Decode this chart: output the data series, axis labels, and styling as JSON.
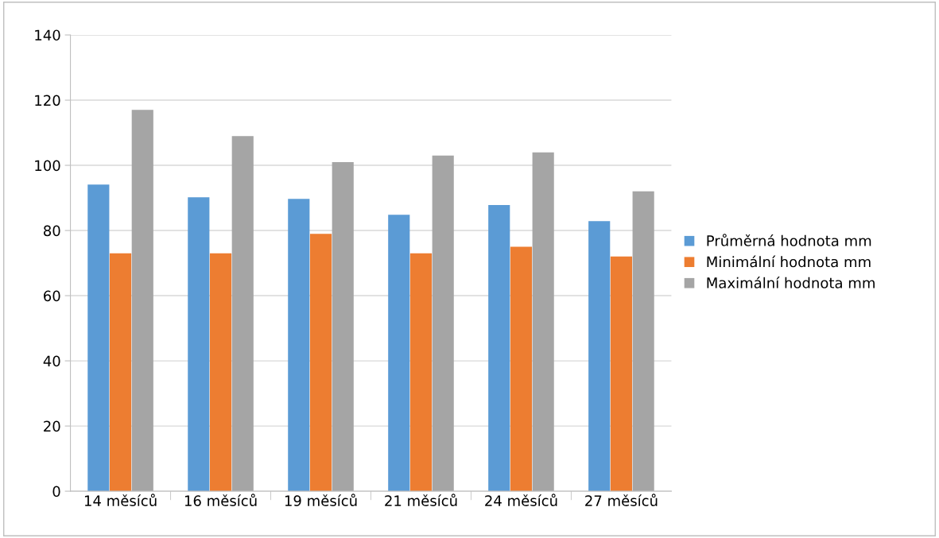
{
  "chart_data": {
    "type": "bar",
    "categories": [
      "14 měsíců",
      "16 měsíců",
      "19 měsíců",
      "21 měsíců",
      "24 měsíců",
      "27 měsíců"
    ],
    "series": [
      {
        "name": "Průměrná hodnota mm",
        "color": "#5b9bd5",
        "values": [
          94.1,
          90.2,
          89.7,
          84.8,
          87.8,
          82.9
        ]
      },
      {
        "name": "Minimální hodnota mm",
        "color": "#ed7d31",
        "values": [
          73,
          73,
          79,
          73,
          75,
          72
        ]
      },
      {
        "name": "Maximální hodnota mm",
        "color": "#a5a5a5",
        "values": [
          117,
          109,
          101,
          103,
          104,
          92
        ]
      }
    ],
    "ylim": [
      0,
      140
    ],
    "yticks": [
      0,
      20,
      40,
      60,
      80,
      100,
      120,
      140
    ],
    "grid": "y",
    "legend": "right"
  }
}
